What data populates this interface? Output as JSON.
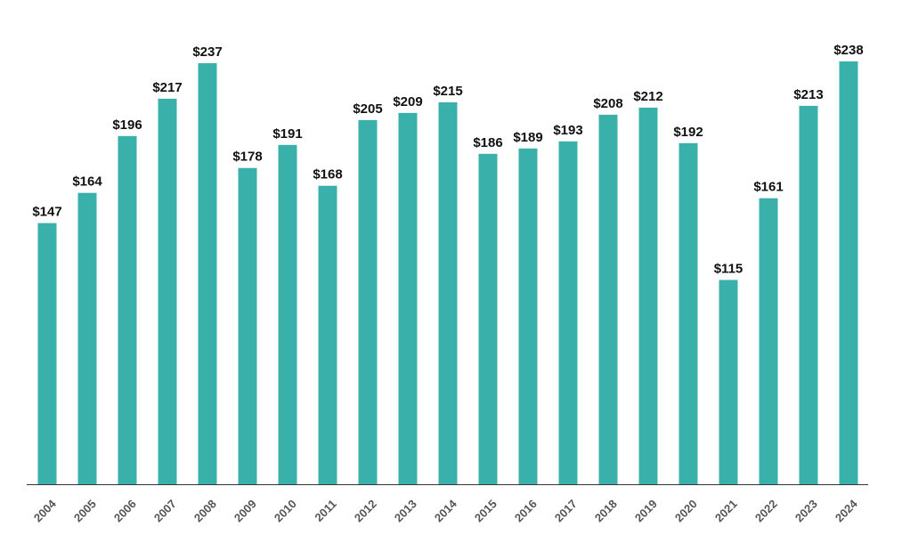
{
  "chart_data": {
    "type": "bar",
    "title": "",
    "xlabel": "",
    "ylabel": "",
    "categories": [
      "2004",
      "2005",
      "2006",
      "2007",
      "2008",
      "2009",
      "2010",
      "2011",
      "2012",
      "2013",
      "2014",
      "2015",
      "2016",
      "2017",
      "2018",
      "2019",
      "2020",
      "2021",
      "2022",
      "2023",
      "2024"
    ],
    "values": [
      147,
      164,
      196,
      217,
      237,
      178,
      191,
      168,
      205,
      209,
      215,
      186,
      189,
      193,
      208,
      212,
      192,
      115,
      161,
      213,
      238
    ],
    "data_labels": [
      "$147",
      "$164",
      "$196",
      "$217",
      "$237",
      "$178",
      "$191",
      "$168",
      "$205",
      "$209",
      "$215",
      "$186",
      "$189",
      "$193",
      "$208",
      "$212",
      "$192",
      "$115",
      "$161",
      "$213",
      "$238"
    ],
    "value_prefix": "$",
    "ylim": [
      0,
      238
    ],
    "grid": false,
    "legend": "none",
    "colors": {
      "bar": "#3AB0AA",
      "axis": "#333333",
      "tick_text": "#555555",
      "label_text": "#111111"
    }
  }
}
